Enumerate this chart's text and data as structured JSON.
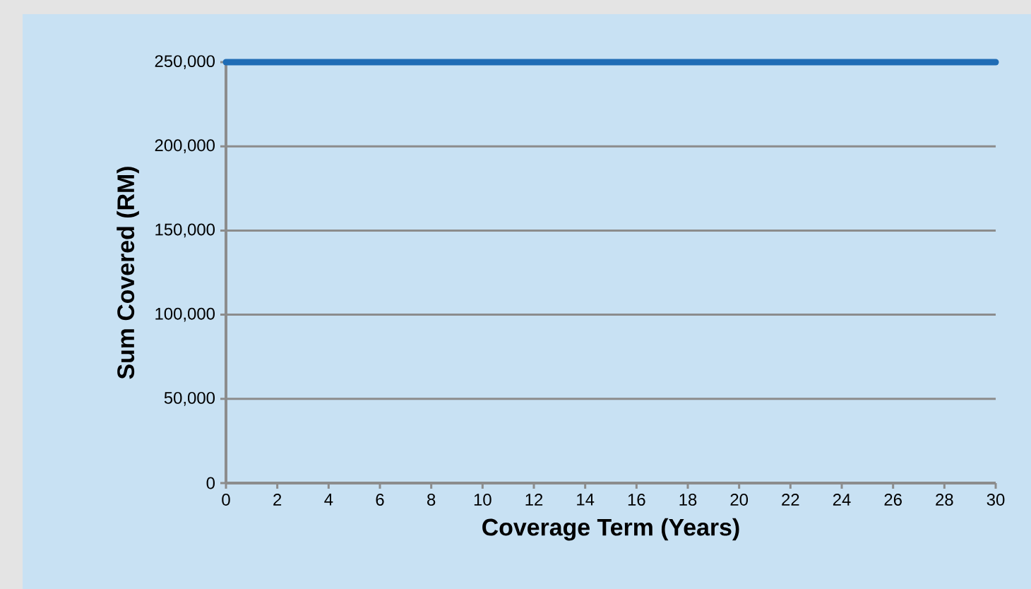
{
  "chart_data": {
    "type": "line",
    "xlabel": "Coverage Term (Years)",
    "ylabel": "Sum Covered (RM)",
    "x": [
      0,
      30
    ],
    "series": [
      {
        "color": "#1f6cb5",
        "values": [
          250000,
          250000
        ]
      }
    ],
    "xlim": [
      0,
      30
    ],
    "ylim": [
      0,
      250000
    ],
    "xticks": [
      0,
      2,
      4,
      6,
      8,
      10,
      12,
      14,
      16,
      18,
      20,
      22,
      24,
      26,
      28,
      30
    ],
    "yticks": [
      0,
      {
        "value": 50000,
        "label": "50,000"
      },
      {
        "value": 100000,
        "label": "100,000"
      },
      {
        "value": 150000,
        "label": "150,000"
      },
      {
        "value": 200000,
        "label": "200,000"
      },
      {
        "value": 250000,
        "label": "250,000"
      }
    ],
    "grid": "y",
    "marker": "none",
    "line_style": "solid"
  }
}
